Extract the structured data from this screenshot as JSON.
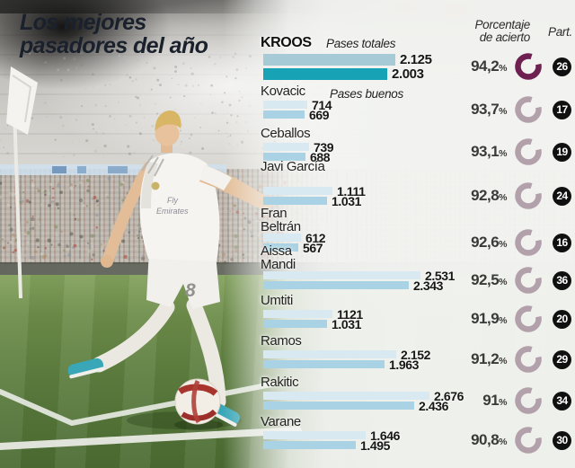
{
  "title": {
    "line1": "Los mejores",
    "line2": "pasadores del año"
  },
  "headers": {
    "accuracy1": "Porcentaje",
    "accuracy2": "de acierto",
    "participation": "Part."
  },
  "legend": {
    "totales": "Pases totales",
    "buenos": "Pases buenos"
  },
  "percent_symbol": "%",
  "colors": {
    "bar_total_highlight": "#a7cbd6",
    "bar_good_highlight": "#17a2b6",
    "bar_total": "#d9e9f1",
    "bar_good": "#a9d2e4",
    "ring_highlight": "#6e2150",
    "ring": "#b2a0aa",
    "badge_bg": "#101010"
  },
  "chart_data": {
    "type": "bar",
    "orientation": "horizontal",
    "series_labels": [
      "Pases totales",
      "Pases buenos"
    ],
    "value_unit": "pases",
    "players": [
      {
        "name": "KROOS",
        "pases_totales": 2125,
        "pases_buenos": 2003,
        "total_display": "2.125",
        "good_display": "2.003",
        "accuracy_pct": 94.2,
        "pct_display": "94,2",
        "part": 26,
        "highlight": true
      },
      {
        "name": "Kovacic",
        "pases_totales": 714,
        "pases_buenos": 669,
        "total_display": "714",
        "good_display": "669",
        "accuracy_pct": 93.7,
        "pct_display": "93,7",
        "part": 17,
        "highlight": false
      },
      {
        "name": "Ceballos",
        "pases_totales": 739,
        "pases_buenos": 688,
        "total_display": "739",
        "good_display": "688",
        "accuracy_pct": 93.1,
        "pct_display": "93,1",
        "part": 19,
        "highlight": false
      },
      {
        "name": "Javi García",
        "pases_totales": 1111,
        "pases_buenos": 1031,
        "total_display": "1.111",
        "good_display": "1.031",
        "accuracy_pct": 92.8,
        "pct_display": "92,8",
        "part": 24,
        "highlight": false
      },
      {
        "name": "Fran Beltrán",
        "pases_totales": 612,
        "pases_buenos": 567,
        "total_display": "612",
        "good_display": "567",
        "accuracy_pct": 92.6,
        "pct_display": "92,6",
        "part": 16,
        "highlight": false
      },
      {
        "name": "Aissa Mandi",
        "pases_totales": 2531,
        "pases_buenos": 2343,
        "total_display": "2.531",
        "good_display": "2.343",
        "accuracy_pct": 92.5,
        "pct_display": "92,5",
        "part": 36,
        "highlight": false
      },
      {
        "name": "Umtiti",
        "pases_totales": 1121,
        "pases_buenos": 1031,
        "total_display": "1121",
        "good_display": "1.031",
        "accuracy_pct": 91.9,
        "pct_display": "91,9",
        "part": 20,
        "highlight": false
      },
      {
        "name": "Ramos",
        "pases_totales": 2152,
        "pases_buenos": 1963,
        "total_display": "2.152",
        "good_display": "1.963",
        "accuracy_pct": 91.2,
        "pct_display": "91,2",
        "part": 29,
        "highlight": false
      },
      {
        "name": "Rakitic",
        "pases_totales": 2676,
        "pases_buenos": 2436,
        "total_display": "2.676",
        "good_display": "2.436",
        "accuracy_pct": 91.0,
        "pct_display": "91",
        "part": 34,
        "highlight": false
      },
      {
        "name": "Varane",
        "pases_totales": 1646,
        "pases_buenos": 1495,
        "total_display": "1.646",
        "good_display": "1.495",
        "accuracy_pct": 90.8,
        "pct_display": "90,8",
        "part": 30,
        "highlight": false
      }
    ]
  }
}
